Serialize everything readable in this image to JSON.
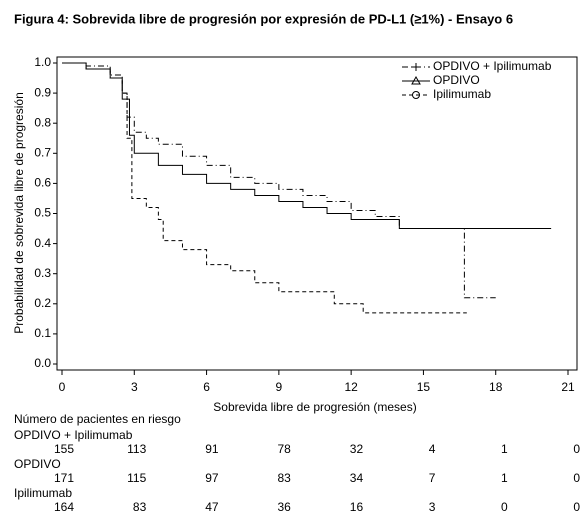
{
  "chart_data": {
    "type": "line",
    "title": "Figura 4: Sobrevida libre de progresión por expresión de PD-L1 (≥1%) - Ensayo 6",
    "x_label": "Sobrevida libre de progresión (meses)",
    "y_label": "Probabilidad de sobrevida libre de progresión",
    "xlim": [
      0,
      21
    ],
    "xticks": [
      0,
      3,
      6,
      9,
      12,
      15,
      18,
      21
    ],
    "ylim": [
      0,
      1
    ],
    "yticks": [
      {
        "value": 0,
        "label": "0.0"
      },
      0.1,
      0.2,
      0.3,
      0.4,
      0.5,
      0.6,
      0.7,
      0.8,
      0.9,
      {
        "value": 1,
        "label": "1.0"
      }
    ],
    "legend": "upper right",
    "series": [
      {
        "name": "OPDIVO + Ipilimumab",
        "color": "#000000",
        "dash": "6 3 1 3",
        "marker": "plus",
        "x": [
          0,
          1,
          1,
          2,
          2,
          2.5,
          2.5,
          2.7,
          2.7,
          3,
          3,
          3.5,
          3.5,
          4,
          4,
          5,
          5,
          6,
          6,
          7,
          7,
          8,
          8,
          9,
          9,
          10,
          10,
          11,
          11,
          12,
          12,
          13,
          13,
          14,
          14,
          16.7,
          16.7,
          18
        ],
        "values": [
          1,
          1,
          0.99,
          0.99,
          0.96,
          0.96,
          0.9,
          0.9,
          0.82,
          0.82,
          0.77,
          0.77,
          0.75,
          0.75,
          0.73,
          0.73,
          0.69,
          0.69,
          0.66,
          0.66,
          0.62,
          0.62,
          0.6,
          0.6,
          0.58,
          0.58,
          0.56,
          0.56,
          0.54,
          0.54,
          0.51,
          0.51,
          0.49,
          0.49,
          0.45,
          0.45,
          0.22,
          0.22
        ]
      },
      {
        "name": "OPDIVO",
        "color": "#000000",
        "dash": "none",
        "marker": "triangle",
        "x": [
          0,
          1,
          1,
          2,
          2,
          2.5,
          2.5,
          2.8,
          2.8,
          3,
          3,
          4,
          4,
          5,
          5,
          6,
          6,
          7,
          7,
          8,
          8,
          9,
          9,
          10,
          10,
          11,
          11,
          12,
          12,
          14,
          14,
          20.3
        ],
        "values": [
          1,
          1,
          0.98,
          0.98,
          0.95,
          0.95,
          0.88,
          0.88,
          0.76,
          0.76,
          0.7,
          0.7,
          0.66,
          0.66,
          0.63,
          0.63,
          0.6,
          0.6,
          0.58,
          0.58,
          0.56,
          0.56,
          0.54,
          0.54,
          0.52,
          0.52,
          0.5,
          0.5,
          0.48,
          0.48,
          0.45,
          0.45
        ]
      },
      {
        "name": "Ipilimumab",
        "color": "#000000",
        "dash": "4 3",
        "marker": "circle",
        "x": [
          0,
          1,
          1,
          2,
          2,
          2.5,
          2.5,
          2.7,
          2.7,
          2.9,
          2.9,
          3.5,
          3.5,
          4,
          4,
          4.2,
          4.2,
          5,
          5,
          6,
          6,
          7,
          7,
          8,
          8,
          9,
          9,
          11.3,
          11.3,
          12.5,
          12.5,
          16.8
        ],
        "values": [
          1,
          1,
          0.98,
          0.98,
          0.95,
          0.95,
          0.9,
          0.9,
          0.75,
          0.75,
          0.55,
          0.55,
          0.52,
          0.52,
          0.48,
          0.48,
          0.41,
          0.41,
          0.38,
          0.38,
          0.33,
          0.33,
          0.31,
          0.31,
          0.27,
          0.27,
          0.24,
          0.24,
          0.2,
          0.2,
          0.17,
          0.17
        ]
      }
    ],
    "at_risk": {
      "title": "Número de pacientes en riesgo",
      "rows": [
        {
          "name": "OPDIVO + Ipilimumab",
          "values": [
            155,
            113,
            91,
            78,
            32,
            4,
            1,
            0
          ]
        },
        {
          "name": "OPDIVO",
          "values": [
            171,
            115,
            97,
            83,
            34,
            7,
            1,
            0
          ]
        },
        {
          "name": "Ipilimumab",
          "values": [
            164,
            83,
            47,
            36,
            16,
            3,
            0,
            0
          ]
        }
      ]
    }
  }
}
